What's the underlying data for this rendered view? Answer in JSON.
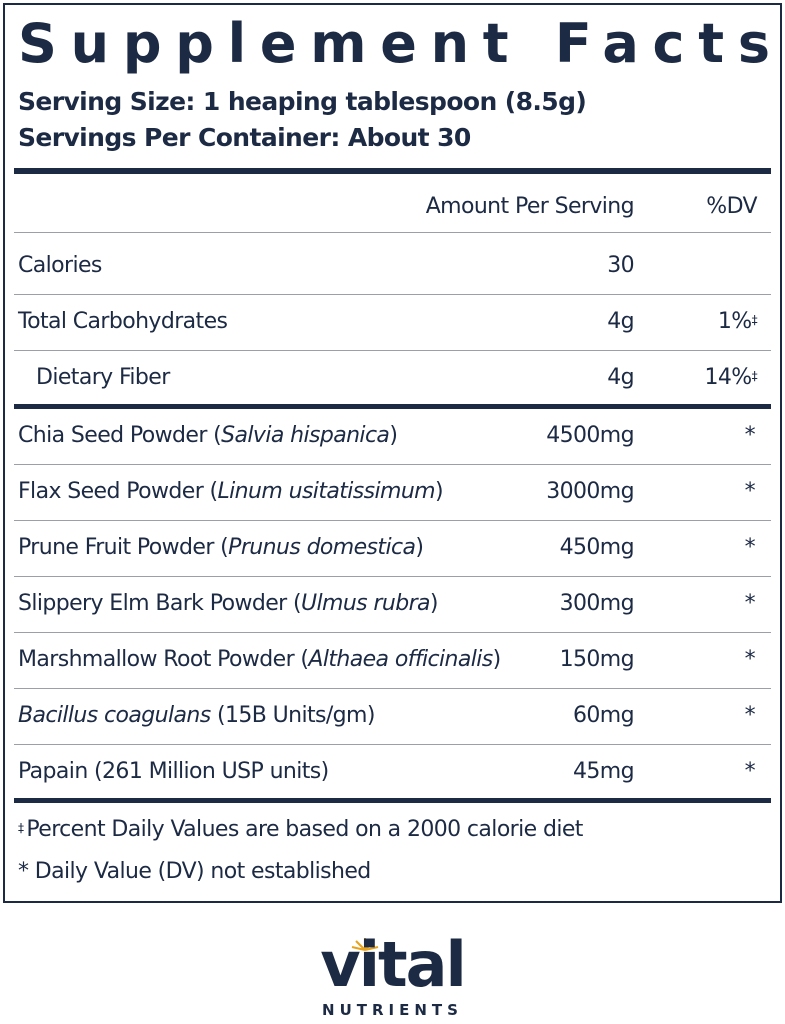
{
  "label": {
    "title": "Supplement Facts",
    "serving_size": "Serving Size: 1 heaping tablespoon (8.5g)",
    "servings_per_container": "Servings Per Container: About 30",
    "columns": [
      "Amount Per Serving",
      "%DV"
    ],
    "sections": [
      {
        "rows": [
          {
            "name": [
              {
                "text": "Calories"
              }
            ],
            "amount": "30"
          },
          {
            "name": [
              {
                "text": "Total Carbohydrates"
              }
            ],
            "amount": "4g",
            "dv": "1%",
            "dv_note": "‡"
          },
          {
            "name": [
              {
                "text": "Dietary Fiber"
              }
            ],
            "amount": "4g",
            "dv": "14%",
            "dv_note": "‡",
            "indent": true
          }
        ]
      },
      {
        "rows": [
          {
            "name": [
              {
                "text": "Chia Seed Powder ("
              },
              {
                "text": "Salvia hispanica",
                "italic": true
              },
              {
                "text": ")"
              }
            ],
            "amount": "4500mg",
            "dv": "*"
          },
          {
            "name": [
              {
                "text": "Flax Seed Powder ("
              },
              {
                "text": "Linum usitatissimum",
                "italic": true
              },
              {
                "text": ")"
              }
            ],
            "amount": "3000mg",
            "dv": "*"
          },
          {
            "name": [
              {
                "text": "Prune Fruit Powder ("
              },
              {
                "text": "Prunus domestica",
                "italic": true
              },
              {
                "text": ")"
              }
            ],
            "amount": "450mg",
            "dv": "*"
          },
          {
            "name": [
              {
                "text": "Slippery Elm Bark Powder ("
              },
              {
                "text": "Ulmus rubra",
                "italic": true
              },
              {
                "text": ")"
              }
            ],
            "amount": "300mg",
            "dv": "*"
          },
          {
            "name": [
              {
                "text": "Marshmallow Root Powder ("
              },
              {
                "text": "Althaea officinalis",
                "italic": true
              },
              {
                "text": ")"
              }
            ],
            "amount": "150mg",
            "dv": "*"
          },
          {
            "name": [
              {
                "text": "Bacillus coagulans",
                "italic": true
              },
              {
                "text": " (15B Units/gm)"
              }
            ],
            "amount": "60mg",
            "dv": "*"
          },
          {
            "name": [
              {
                "text": "Papain (261 Million USP units)"
              }
            ],
            "amount": "45mg",
            "dv": "*"
          }
        ]
      }
    ],
    "footnotes": [
      {
        "symbol": "‡",
        "text": "Percent Daily Values are based on a 2000 calorie diet"
      },
      {
        "text": "* Daily Value (DV) not established"
      }
    ]
  },
  "logo": {
    "name": "vital",
    "tagline": "NUTRIENTS"
  }
}
